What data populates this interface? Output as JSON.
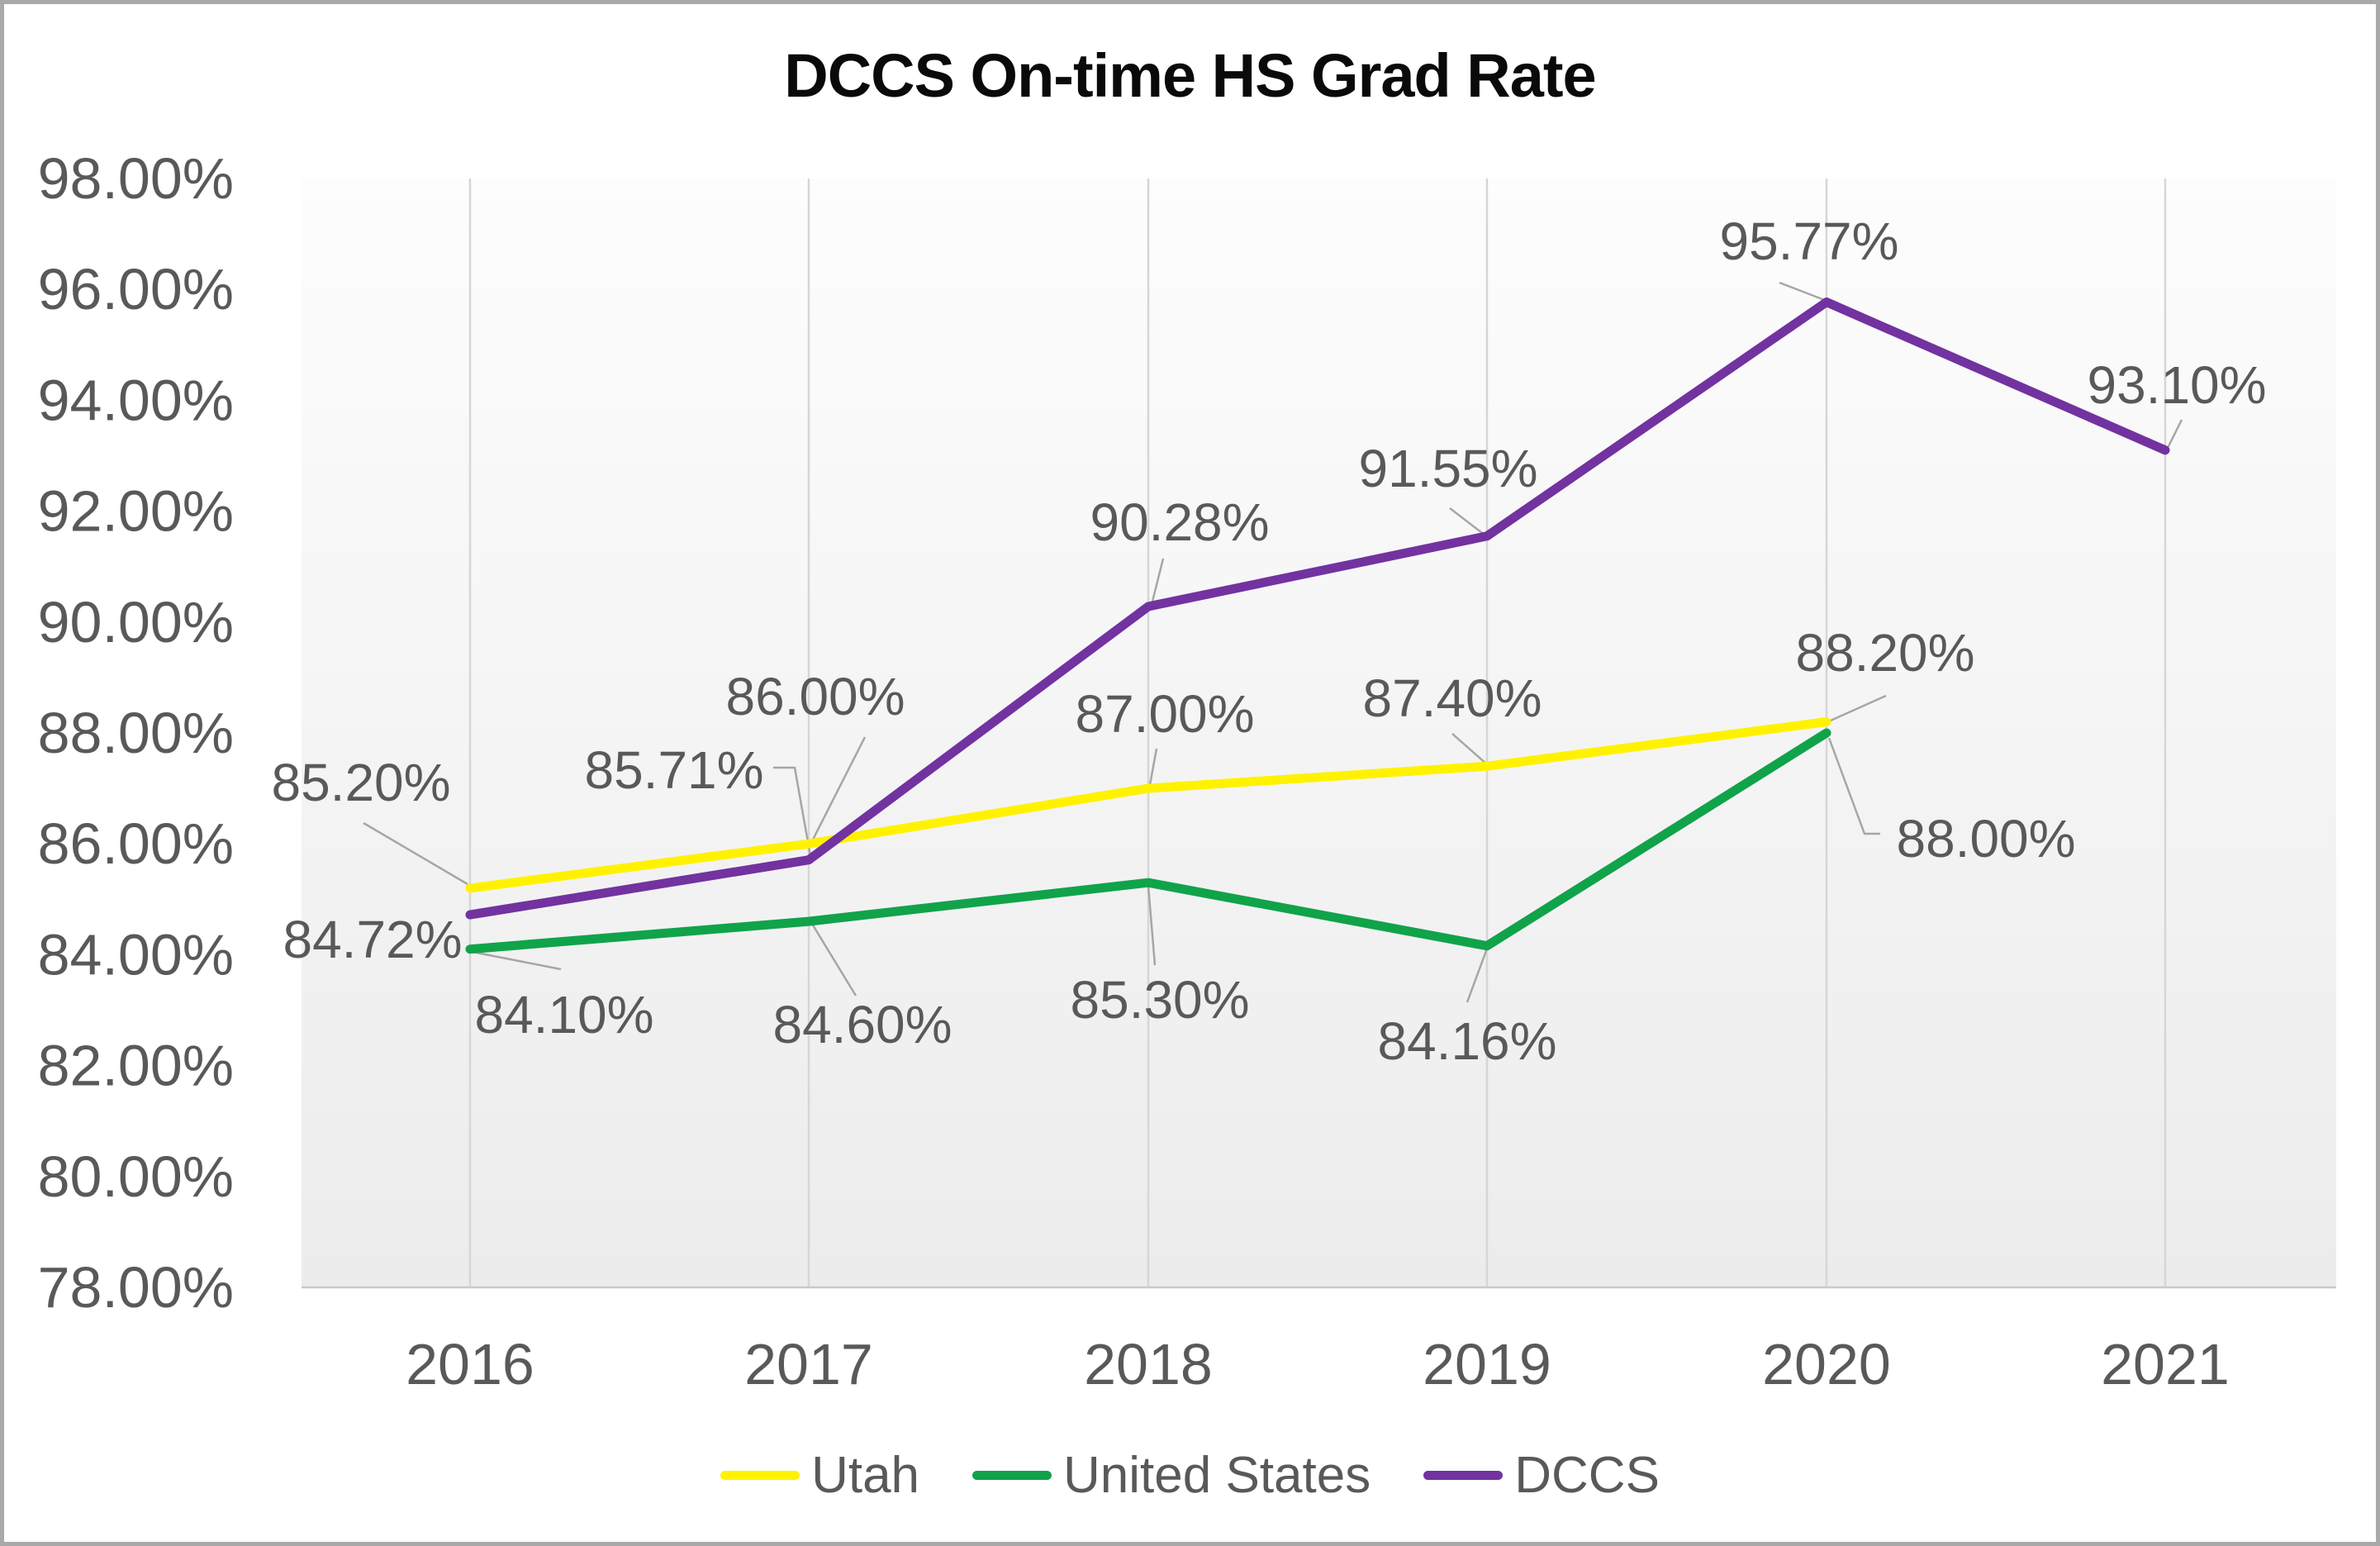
{
  "chart_data": {
    "type": "line",
    "title": "DCCS On-time HS Grad Rate",
    "categories": [
      "2016",
      "2017",
      "2018",
      "2019",
      "2020",
      "2021"
    ],
    "series": [
      {
        "name": "Utah",
        "color": "#FFF200",
        "values": [
          85.2,
          86.0,
          87.0,
          87.4,
          88.2,
          null
        ],
        "labels": [
          "85.20%",
          "86.00%",
          "87.00%",
          "87.40%",
          "88.20%",
          ""
        ]
      },
      {
        "name": "United States",
        "color": "#10A34A",
        "values": [
          84.1,
          84.6,
          85.3,
          84.16,
          88.0,
          null
        ],
        "labels": [
          "84.10%",
          "84.60%",
          "85.30%",
          "84.16%",
          "88.00%",
          ""
        ]
      },
      {
        "name": "DCCS",
        "color": "#7232A0",
        "values": [
          84.72,
          85.71,
          90.28,
          91.55,
          95.77,
          93.1
        ],
        "labels": [
          "84.72%",
          "85.71%",
          "90.28%",
          "91.55%",
          "95.77%",
          "93.10%"
        ]
      }
    ],
    "y_axis": {
      "min": 78,
      "max": 98,
      "step": 2,
      "tick_labels": [
        "98.00%",
        "96.00%",
        "94.00%",
        "92.00%",
        "90.00%",
        "88.00%",
        "86.00%",
        "84.00%",
        "82.00%",
        "80.00%",
        "78.00%"
      ]
    },
    "x_axis": {
      "tick_labels": [
        "2016",
        "2017",
        "2018",
        "2019",
        "2020",
        "2021"
      ]
    },
    "legend": {
      "position": "bottom",
      "entries": [
        "Utah",
        "United States",
        "DCCS"
      ]
    },
    "grid": "vertical-only",
    "styles": {
      "label_color": "#595959",
      "leader_color": "#A6A6A6",
      "gridline_color": "#D6D6D6",
      "axis_line_color": "#C9C9C9",
      "plot_bg_top": "#FDFDFD",
      "plot_bg_bottom": "#ECECEC",
      "border_color": "#A9A9A9"
    }
  }
}
